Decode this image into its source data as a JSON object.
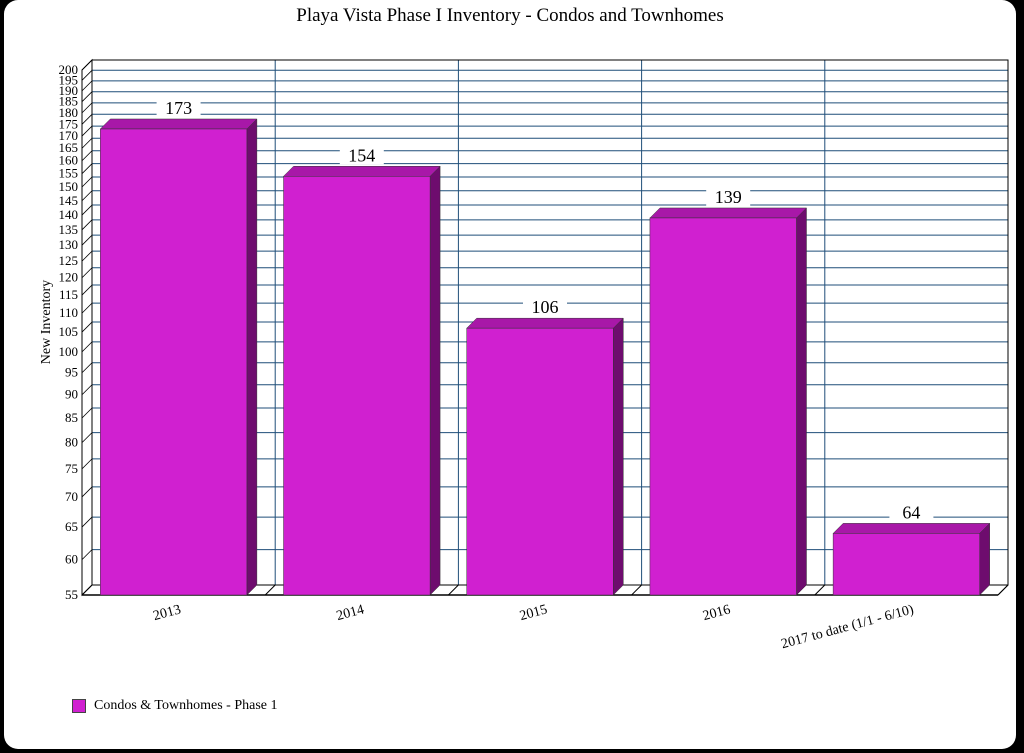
{
  "chart_data": {
    "type": "bar",
    "title": "Playa Vista Phase I Inventory - Condos and Townhomes",
    "ylabel": "New Inventory",
    "xlabel": "",
    "ylim": [
      55,
      200
    ],
    "ytick_step": 5,
    "log_scale": true,
    "grid": true,
    "legend_position": "bottom-left",
    "categories": [
      "2013",
      "2014",
      "2015",
      "2016",
      "2017 to date (1/1 - 6/10)"
    ],
    "series": [
      {
        "name": "Condos & Townhomes - Phase 1",
        "values": [
          173,
          154,
          106,
          139,
          64
        ],
        "color": "#d020d0",
        "top_color": "#a818a8",
        "side_color": "#6e0c6e"
      }
    ],
    "grid_color": "#1f4e79"
  }
}
